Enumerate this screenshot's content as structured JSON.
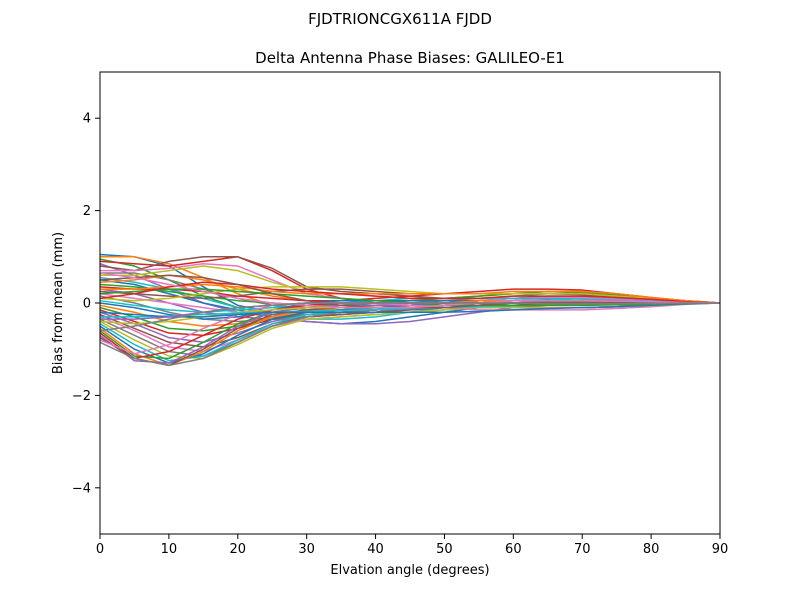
{
  "chart_data": {
    "type": "line",
    "suptitle": "FJDTRIONCGX611A FJDD",
    "title": "Delta Antenna Phase Biases: GALILEO-E1",
    "xlabel": "Elvation angle (degrees)",
    "ylabel": "Bias from mean (mm)",
    "xlim": [
      0,
      90
    ],
    "ylim": [
      -5,
      5
    ],
    "xticks": [
      0,
      10,
      20,
      30,
      40,
      50,
      60,
      70,
      80,
      90
    ],
    "yticks": [
      -4,
      -2,
      0,
      2,
      4
    ],
    "ytick_labels": [
      "−4",
      "−2",
      "0",
      "2",
      "4"
    ],
    "grid": false,
    "legend": "none",
    "x": [
      0,
      5,
      10,
      15,
      20,
      25,
      30,
      35,
      40,
      45,
      50,
      55,
      60,
      65,
      70,
      75,
      80,
      85,
      90
    ],
    "colors": [
      "#1f77b4",
      "#ff7f0e",
      "#2ca02c",
      "#d62728",
      "#9467bd",
      "#8c564b",
      "#e377c2",
      "#7f7f7f",
      "#bcbd22",
      "#17becf"
    ],
    "series": [
      {
        "values": [
          1.05,
          1.0,
          0.8,
          0.35,
          -0.05,
          -0.2,
          -0.2,
          -0.15,
          -0.1,
          -0.05,
          0.0,
          0.05,
          0.1,
          0.15,
          0.15,
          0.1,
          0.05,
          0.02,
          0.0
        ]
      },
      {
        "values": [
          1.0,
          1.0,
          0.85,
          0.55,
          0.2,
          -0.05,
          -0.15,
          -0.15,
          -0.1,
          -0.05,
          0.0,
          0.05,
          0.1,
          0.12,
          0.12,
          0.1,
          0.05,
          0.02,
          0.0
        ]
      },
      {
        "values": [
          0.95,
          0.8,
          0.5,
          0.15,
          -0.1,
          -0.25,
          -0.3,
          -0.25,
          -0.2,
          -0.1,
          -0.05,
          0.0,
          0.05,
          0.1,
          0.1,
          0.08,
          0.05,
          0.02,
          0.0
        ]
      },
      {
        "values": [
          0.9,
          0.85,
          0.8,
          0.9,
          1.0,
          0.7,
          0.3,
          0.1,
          0.0,
          -0.05,
          -0.05,
          0.0,
          0.05,
          0.1,
          0.1,
          0.08,
          0.05,
          0.02,
          0.0
        ]
      },
      {
        "values": [
          0.85,
          0.6,
          0.3,
          0.0,
          -0.2,
          -0.3,
          -0.3,
          -0.25,
          -0.2,
          -0.1,
          -0.05,
          0.0,
          0.05,
          0.08,
          0.1,
          0.08,
          0.05,
          0.02,
          0.0
        ]
      },
      {
        "values": [
          0.8,
          0.7,
          0.9,
          1.0,
          1.0,
          0.75,
          0.35,
          0.25,
          0.2,
          0.15,
          0.1,
          0.1,
          0.1,
          0.1,
          0.1,
          0.08,
          0.05,
          0.02,
          0.0
        ]
      },
      {
        "values": [
          0.7,
          0.7,
          0.75,
          0.85,
          0.8,
          0.5,
          0.2,
          0.1,
          0.05,
          0.0,
          0.0,
          0.05,
          0.1,
          0.12,
          0.12,
          0.1,
          0.06,
          0.02,
          0.0
        ]
      },
      {
        "values": [
          0.65,
          0.65,
          0.5,
          0.3,
          0.1,
          -0.05,
          -0.1,
          -0.1,
          -0.05,
          0.0,
          0.05,
          0.1,
          0.15,
          0.2,
          0.2,
          0.15,
          0.1,
          0.05,
          0.0
        ]
      },
      {
        "values": [
          0.6,
          0.6,
          0.7,
          0.8,
          0.7,
          0.45,
          0.25,
          0.2,
          0.15,
          0.1,
          0.1,
          0.15,
          0.2,
          0.25,
          0.25,
          0.2,
          0.12,
          0.05,
          0.0
        ]
      },
      {
        "values": [
          0.55,
          0.45,
          0.3,
          0.1,
          -0.1,
          -0.25,
          -0.35,
          -0.35,
          -0.3,
          -0.2,
          -0.1,
          -0.05,
          0.0,
          0.05,
          0.1,
          0.08,
          0.05,
          0.02,
          0.0
        ]
      },
      {
        "values": [
          0.5,
          0.4,
          0.2,
          0.0,
          -0.15,
          -0.3,
          -0.4,
          -0.45,
          -0.4,
          -0.3,
          -0.2,
          -0.1,
          -0.05,
          0.0,
          0.05,
          0.05,
          0.03,
          0.01,
          0.0
        ]
      },
      {
        "values": [
          0.45,
          0.5,
          0.6,
          0.5,
          0.3,
          0.15,
          0.05,
          0.0,
          0.0,
          0.05,
          0.1,
          0.15,
          0.2,
          0.2,
          0.2,
          0.15,
          0.1,
          0.05,
          0.0
        ]
      },
      {
        "values": [
          0.4,
          0.35,
          0.25,
          0.15,
          0.05,
          0.0,
          -0.05,
          -0.05,
          0.0,
          0.05,
          0.1,
          0.15,
          0.2,
          0.25,
          0.22,
          0.18,
          0.1,
          0.05,
          0.0
        ]
      },
      {
        "values": [
          0.35,
          0.3,
          0.3,
          0.25,
          0.15,
          0.1,
          0.05,
          0.05,
          0.1,
          0.15,
          0.2,
          0.25,
          0.3,
          0.3,
          0.28,
          0.2,
          0.12,
          0.05,
          0.0
        ]
      },
      {
        "values": [
          0.3,
          0.2,
          0.0,
          -0.2,
          -0.3,
          -0.35,
          -0.4,
          -0.45,
          -0.45,
          -0.4,
          -0.3,
          -0.2,
          -0.1,
          -0.05,
          0.0,
          0.0,
          0.0,
          0.0,
          0.0
        ]
      },
      {
        "values": [
          0.25,
          0.2,
          0.15,
          0.1,
          0.15,
          0.25,
          0.3,
          0.3,
          0.25,
          0.2,
          0.2,
          0.2,
          0.2,
          0.2,
          0.18,
          0.12,
          0.08,
          0.03,
          0.0
        ]
      },
      {
        "values": [
          0.2,
          0.1,
          0.0,
          -0.1,
          -0.2,
          -0.25,
          -0.25,
          -0.2,
          -0.15,
          -0.1,
          -0.05,
          0.0,
          0.05,
          0.1,
          0.1,
          0.08,
          0.05,
          0.02,
          0.0
        ]
      },
      {
        "values": [
          0.15,
          0.0,
          -0.2,
          -0.35,
          -0.4,
          -0.35,
          -0.3,
          -0.25,
          -0.2,
          -0.15,
          -0.1,
          -0.05,
          0.0,
          0.05,
          0.05,
          0.05,
          0.03,
          0.01,
          0.0
        ]
      },
      {
        "values": [
          0.1,
          0.05,
          0.1,
          0.2,
          0.3,
          0.35,
          0.35,
          0.35,
          0.3,
          0.25,
          0.2,
          0.2,
          0.2,
          0.2,
          0.2,
          0.15,
          0.1,
          0.05,
          0.0
        ]
      },
      {
        "values": [
          0.05,
          -0.05,
          -0.15,
          -0.2,
          -0.15,
          -0.1,
          -0.05,
          0.0,
          0.05,
          0.1,
          0.1,
          0.1,
          0.1,
          0.1,
          0.08,
          0.06,
          0.04,
          0.02,
          0.0
        ]
      },
      {
        "values": [
          0.0,
          -0.1,
          -0.25,
          -0.35,
          -0.3,
          -0.15,
          0.0,
          0.05,
          0.05,
          0.05,
          0.05,
          0.05,
          0.05,
          0.05,
          0.05,
          0.04,
          0.03,
          0.01,
          0.0
        ]
      },
      {
        "values": [
          -0.05,
          -0.2,
          -0.4,
          -0.5,
          -0.45,
          -0.3,
          -0.2,
          -0.15,
          -0.1,
          -0.05,
          0.0,
          0.0,
          0.0,
          0.0,
          0.0,
          0.0,
          0.0,
          0.0,
          0.0
        ]
      },
      {
        "values": [
          -0.1,
          -0.3,
          -0.55,
          -0.6,
          -0.5,
          -0.35,
          -0.25,
          -0.2,
          -0.15,
          -0.1,
          -0.05,
          0.0,
          0.0,
          0.02,
          0.02,
          0.02,
          0.01,
          0.0,
          0.0
        ]
      },
      {
        "values": [
          -0.15,
          -0.4,
          -0.65,
          -0.7,
          -0.55,
          -0.35,
          -0.2,
          -0.15,
          -0.1,
          -0.05,
          0.0,
          0.05,
          0.05,
          0.05,
          0.05,
          0.04,
          0.02,
          0.01,
          0.0
        ]
      },
      {
        "values": [
          -0.2,
          -0.45,
          -0.75,
          -0.85,
          -0.65,
          -0.4,
          -0.25,
          -0.2,
          -0.15,
          -0.1,
          -0.05,
          0.0,
          0.0,
          0.0,
          0.0,
          0.0,
          0.0,
          0.0,
          0.0
        ]
      },
      {
        "values": [
          -0.25,
          -0.55,
          -0.85,
          -0.95,
          -0.75,
          -0.45,
          -0.3,
          -0.25,
          -0.2,
          -0.15,
          -0.1,
          -0.05,
          0.0,
          0.0,
          0.0,
          0.0,
          0.0,
          0.0,
          0.0
        ]
      },
      {
        "values": [
          -0.3,
          -0.6,
          -0.95,
          -1.05,
          -0.8,
          -0.5,
          -0.35,
          -0.3,
          -0.25,
          -0.2,
          -0.15,
          -0.1,
          -0.05,
          -0.05,
          -0.05,
          -0.03,
          -0.02,
          -0.01,
          0.0
        ]
      },
      {
        "values": [
          -0.35,
          -0.7,
          -1.05,
          -1.15,
          -0.85,
          -0.5,
          -0.3,
          -0.2,
          -0.15,
          -0.1,
          -0.05,
          0.0,
          0.0,
          0.0,
          0.0,
          0.0,
          0.0,
          0.0,
          0.0
        ]
      },
      {
        "values": [
          -0.4,
          -0.8,
          -1.15,
          -1.2,
          -0.9,
          -0.55,
          -0.35,
          -0.3,
          -0.25,
          -0.2,
          -0.15,
          -0.1,
          -0.05,
          -0.05,
          -0.05,
          -0.03,
          -0.02,
          -0.01,
          0.0
        ]
      },
      {
        "values": [
          -0.45,
          -0.9,
          -1.25,
          -1.15,
          -0.8,
          -0.45,
          -0.25,
          -0.2,
          -0.15,
          -0.1,
          -0.05,
          0.0,
          0.05,
          0.05,
          0.05,
          0.04,
          0.02,
          0.01,
          0.0
        ]
      },
      {
        "values": [
          -0.5,
          -1.0,
          -1.3,
          -1.1,
          -0.7,
          -0.35,
          -0.2,
          -0.15,
          -0.1,
          -0.05,
          0.0,
          0.05,
          0.05,
          0.05,
          0.05,
          0.04,
          0.02,
          0.01,
          0.0
        ]
      },
      {
        "values": [
          -0.55,
          -1.1,
          -1.35,
          -1.05,
          -0.6,
          -0.3,
          -0.15,
          -0.1,
          -0.05,
          0.0,
          0.0,
          0.05,
          0.05,
          0.05,
          0.05,
          0.04,
          0.02,
          0.01,
          0.0
        ]
      },
      {
        "values": [
          -0.6,
          -1.15,
          -1.2,
          -0.85,
          -0.45,
          -0.2,
          -0.1,
          -0.05,
          0.0,
          0.0,
          0.0,
          0.0,
          0.0,
          0.0,
          0.0,
          0.0,
          0.0,
          0.0,
          0.0
        ]
      },
      {
        "values": [
          -0.65,
          -1.2,
          -1.05,
          -0.7,
          -0.35,
          -0.15,
          -0.05,
          0.0,
          0.0,
          0.0,
          0.0,
          0.0,
          0.0,
          -0.05,
          -0.05,
          -0.03,
          -0.02,
          -0.01,
          0.0
        ]
      },
      {
        "values": [
          -0.7,
          -1.25,
          -1.3,
          -0.95,
          -0.5,
          -0.2,
          -0.1,
          -0.05,
          -0.05,
          -0.05,
          -0.05,
          -0.05,
          -0.1,
          -0.1,
          -0.1,
          -0.08,
          -0.05,
          -0.02,
          0.0
        ]
      },
      {
        "values": [
          -0.75,
          -1.2,
          -1.35,
          -1.0,
          -0.55,
          -0.25,
          -0.15,
          -0.1,
          -0.1,
          -0.1,
          -0.1,
          -0.1,
          -0.1,
          -0.1,
          -0.1,
          -0.08,
          -0.05,
          -0.02,
          0.0
        ]
      },
      {
        "values": [
          -0.8,
          -1.1,
          -0.9,
          -0.55,
          -0.25,
          -0.05,
          0.0,
          0.0,
          0.0,
          -0.05,
          -0.1,
          -0.15,
          -0.15,
          -0.15,
          -0.15,
          -0.12,
          -0.08,
          -0.03,
          0.0
        ]
      },
      {
        "values": [
          -0.85,
          -1.2,
          -1.35,
          -1.2,
          -0.85,
          -0.5,
          -0.3,
          -0.2,
          -0.15,
          -0.1,
          -0.1,
          -0.1,
          -0.1,
          -0.1,
          -0.1,
          -0.08,
          -0.05,
          -0.02,
          0.0
        ]
      },
      {
        "values": [
          -0.4,
          -0.45,
          -0.4,
          -0.3,
          -0.2,
          -0.15,
          -0.1,
          -0.1,
          -0.1,
          -0.1,
          -0.1,
          -0.1,
          -0.1,
          -0.1,
          -0.1,
          -0.08,
          -0.05,
          -0.02,
          0.0
        ]
      },
      {
        "values": [
          -0.3,
          -0.3,
          -0.28,
          -0.25,
          -0.22,
          -0.2,
          -0.18,
          -0.16,
          -0.14,
          -0.12,
          -0.1,
          -0.08,
          -0.06,
          -0.05,
          -0.04,
          -0.03,
          -0.02,
          -0.01,
          0.0
        ]
      },
      {
        "values": [
          -0.2,
          -0.25,
          -0.3,
          -0.3,
          -0.25,
          -0.2,
          -0.2,
          -0.2,
          -0.2,
          -0.2,
          -0.2,
          -0.18,
          -0.15,
          -0.12,
          -0.1,
          -0.08,
          -0.05,
          -0.02,
          0.0
        ]
      },
      {
        "values": [
          0.3,
          0.3,
          0.35,
          0.4,
          0.35,
          0.25,
          0.2,
          0.2,
          0.2,
          0.2,
          0.2,
          0.2,
          0.25,
          0.25,
          0.25,
          0.2,
          0.12,
          0.05,
          0.0
        ]
      },
      {
        "values": [
          0.2,
          0.25,
          0.3,
          0.3,
          0.25,
          0.2,
          0.15,
          0.1,
          0.05,
          0.0,
          -0.05,
          -0.05,
          -0.05,
          -0.05,
          -0.05,
          -0.04,
          -0.03,
          -0.01,
          0.0
        ]
      },
      {
        "values": [
          0.1,
          0.2,
          0.35,
          0.45,
          0.4,
          0.3,
          0.25,
          0.2,
          0.15,
          0.1,
          0.1,
          0.1,
          0.15,
          0.15,
          0.15,
          0.12,
          0.08,
          0.03,
          0.0
        ]
      },
      {
        "values": [
          -0.35,
          -0.35,
          -0.3,
          -0.2,
          -0.1,
          -0.05,
          0.0,
          0.0,
          0.0,
          0.0,
          0.0,
          0.0,
          0.0,
          0.0,
          0.0,
          0.0,
          0.0,
          0.0,
          0.0
        ]
      },
      {
        "values": [
          0.5,
          0.55,
          0.6,
          0.55,
          0.4,
          0.2,
          0.05,
          -0.05,
          -0.1,
          -0.1,
          -0.1,
          -0.05,
          0.0,
          0.0,
          0.0,
          0.0,
          0.0,
          0.0,
          0.0
        ]
      },
      {
        "values": [
          0.65,
          0.55,
          0.4,
          0.25,
          0.1,
          0.0,
          -0.05,
          -0.1,
          -0.1,
          -0.1,
          -0.05,
          0.0,
          0.05,
          0.05,
          0.05,
          0.04,
          0.03,
          0.01,
          0.0
        ]
      },
      {
        "values": [
          -0.6,
          -0.5,
          -0.35,
          -0.2,
          -0.1,
          -0.05,
          0.0,
          0.0,
          0.0,
          0.0,
          0.0,
          0.0,
          0.0,
          -0.02,
          -0.02,
          -0.02,
          -0.01,
          0.0,
          0.0
        ]
      }
    ]
  }
}
